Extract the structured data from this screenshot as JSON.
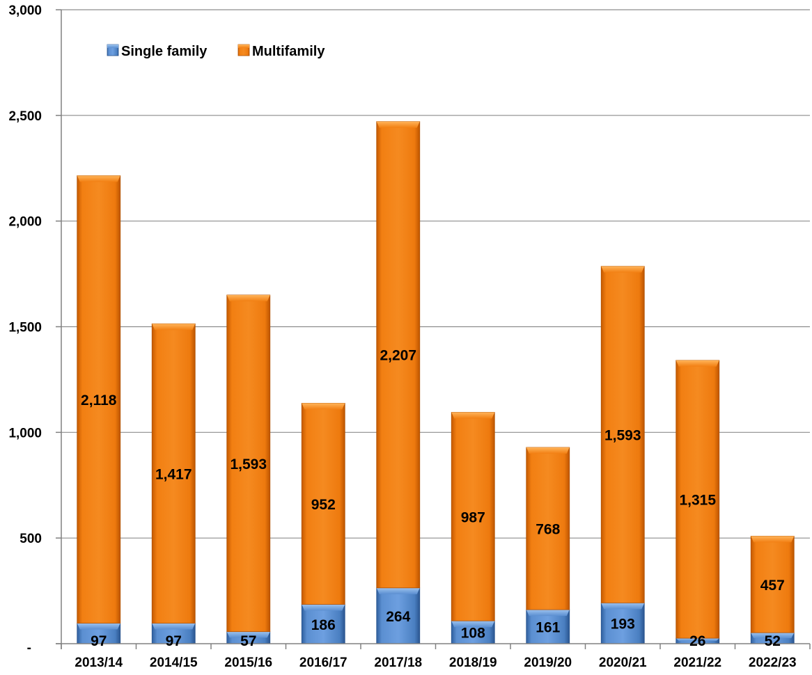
{
  "chart_data": {
    "type": "bar",
    "stacked": true,
    "title": "",
    "xlabel": "",
    "ylabel": "",
    "categories": [
      "2013/14",
      "2014/15",
      "2015/16",
      "2016/17",
      "2017/18",
      "2018/19",
      "2019/20",
      "2020/21",
      "2021/22",
      "2022/23"
    ],
    "series": [
      {
        "name": "Single family",
        "color": "#4a7fc1",
        "values": [
          97,
          97,
          57,
          186,
          264,
          108,
          161,
          193,
          26,
          52
        ],
        "labels": [
          "97",
          "97",
          "57",
          "186",
          "264",
          "108",
          "161",
          "193",
          "26",
          "52"
        ]
      },
      {
        "name": "Multifamily",
        "color": "#f07c10",
        "values": [
          2118,
          1417,
          1593,
          952,
          2207,
          987,
          768,
          1593,
          1315,
          457
        ],
        "labels": [
          "2,118",
          "1,417",
          "1,593",
          "952",
          "2,207",
          "987",
          "768",
          "1,593",
          "1,315",
          "457"
        ]
      }
    ],
    "ylim": [
      0,
      3000
    ],
    "yticks": [
      0,
      500,
      1000,
      1500,
      2000,
      2500,
      3000
    ],
    "ytick_labels": [
      "-",
      "500",
      "1,000",
      "1,500",
      "2,000",
      "2,500",
      "3,000"
    ],
    "grid": true,
    "legend": "top-left"
  }
}
